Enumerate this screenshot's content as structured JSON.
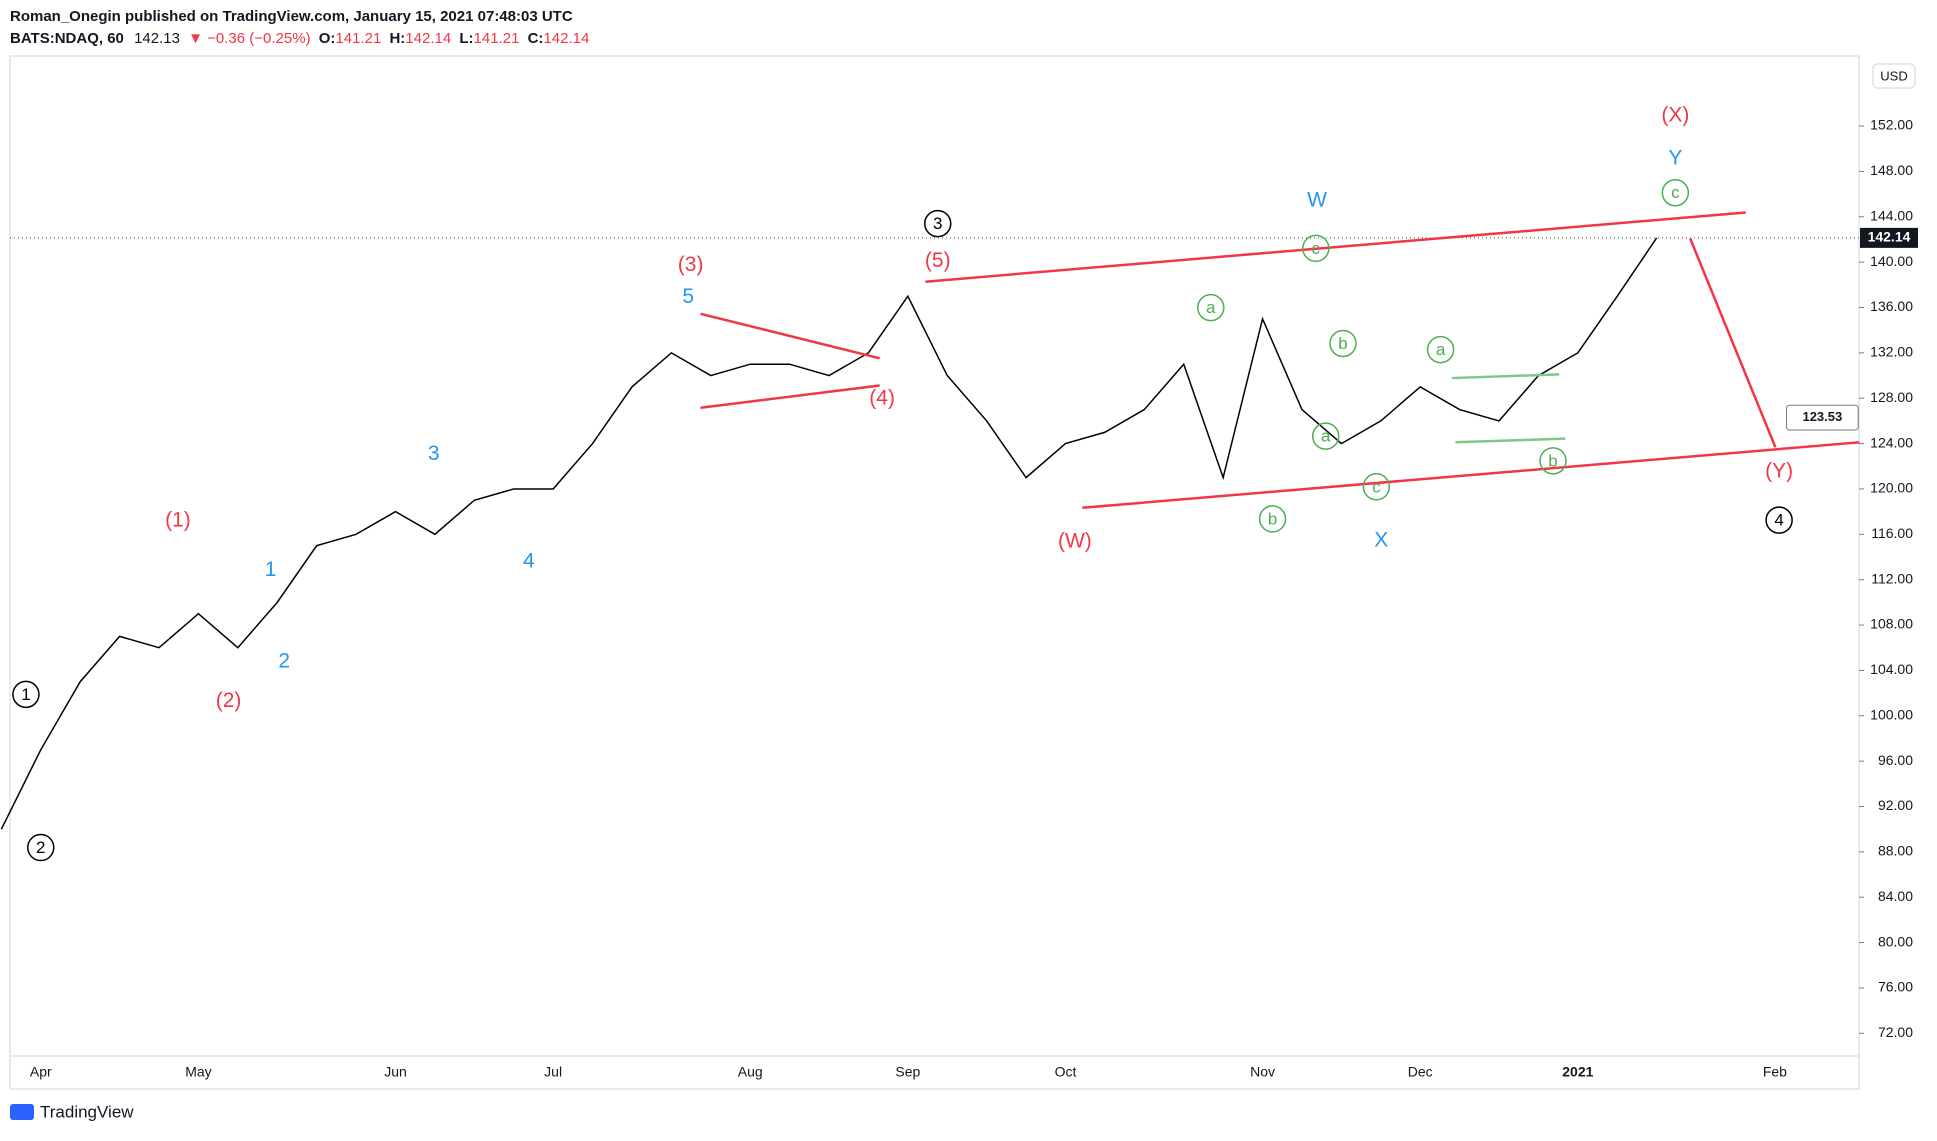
{
  "header": {
    "author_line": "Roman_Onegin published on TradingView.com, January 15, 2021 07:48:03 UTC",
    "symbol": "BATS:NDAQ, 60",
    "last": "142.13",
    "change": "▼ −0.36 (−0.25%)",
    "o_label": "O:",
    "o_value": "141.21",
    "h_label": "H:",
    "h_value": "142.14",
    "l_label": "L:",
    "l_value": "141.21",
    "c_label": "C:",
    "c_value": "142.14"
  },
  "footer": {
    "brand": "TradingView"
  },
  "chart_data": {
    "type": "line",
    "currency": "USD",
    "color": "#000000",
    "categories": [
      null,
      "Apr",
      null,
      null,
      null,
      "May",
      null,
      null,
      null,
      null,
      "Jun",
      null,
      null,
      null,
      "Jul",
      null,
      null,
      null,
      null,
      "Aug",
      null,
      null,
      null,
      "Sep",
      null,
      null,
      null,
      "Oct",
      null,
      null,
      null,
      null,
      "Nov",
      null,
      null,
      null,
      "Dec",
      null,
      null,
      null,
      "2021",
      null,
      null,
      null,
      null,
      "Feb",
      null
    ],
    "values": [
      90,
      97,
      103,
      107,
      106,
      109,
      106,
      110,
      115,
      116,
      118,
      116,
      119,
      120,
      120,
      124,
      129,
      132,
      130,
      131,
      131,
      130,
      132,
      137,
      130,
      126,
      121,
      124,
      125,
      127,
      131,
      121,
      135,
      127,
      124,
      126,
      129,
      127,
      126,
      130,
      132,
      137,
      142.14,
      null,
      null,
      null,
      null
    ],
    "ylim": [
      70,
      158
    ],
    "yticks": [
      {
        "value": 72,
        "label": "72.00"
      },
      {
        "value": 76,
        "label": "76.00"
      },
      {
        "value": 80,
        "label": "80.00"
      },
      {
        "value": 84,
        "label": "84.00"
      },
      {
        "value": 88,
        "label": "88.00"
      },
      {
        "value": 92,
        "label": "92.00"
      },
      {
        "value": 96,
        "label": "96.00"
      },
      {
        "value": 100,
        "label": "100.00"
      },
      {
        "value": 104,
        "label": "104.00"
      },
      {
        "value": 108,
        "label": "108.00"
      },
      {
        "value": 112,
        "label": "112.00"
      },
      {
        "value": 116,
        "label": "116.00"
      },
      {
        "value": 120,
        "label": "120.00"
      },
      {
        "value": 124,
        "label": "124.00"
      },
      {
        "value": 128,
        "label": "128.00"
      },
      {
        "value": 132,
        "label": "132.00"
      },
      {
        "value": 136,
        "label": "136.00"
      },
      {
        "value": 140,
        "label": "140.00"
      },
      {
        "value": 144,
        "label": "144.00"
      },
      {
        "value": 148,
        "label": "148.00"
      },
      {
        "value": 152,
        "label": "152.00"
      }
    ],
    "target_label": "123.53",
    "wave_labels": [
      {
        "text": "1",
        "color": "#000000",
        "circled": true
      },
      {
        "text": "2",
        "color": "#000000",
        "circled": true
      },
      {
        "text": "3",
        "color": "#000000",
        "circled": true
      },
      {
        "text": "4",
        "color": "#000000",
        "circled": true
      },
      {
        "text": "a",
        "color": "#4caf50",
        "circled": true
      },
      {
        "text": "c",
        "color": "#4caf50",
        "circled": true
      },
      {
        "text": "b",
        "color": "#4caf50",
        "circled": true
      },
      {
        "text": "b",
        "color": "#4caf50",
        "circled": true
      },
      {
        "text": "a",
        "color": "#4caf50",
        "circled": true
      },
      {
        "text": "c",
        "color": "#4caf50",
        "circled": true
      },
      {
        "text": "a",
        "color": "#4caf50",
        "circled": true
      },
      {
        "text": "b",
        "color": "#4caf50",
        "circled": true
      },
      {
        "text": "c",
        "color": "#4caf50",
        "circled": true
      },
      {
        "text": "(1)",
        "color": "#f23645",
        "circled": false
      },
      {
        "text": "(2)",
        "color": "#f23645",
        "circled": false
      },
      {
        "text": "(3)",
        "color": "#f23645",
        "circled": false
      },
      {
        "text": "(4)",
        "color": "#f23645",
        "circled": false
      },
      {
        "text": "(5)",
        "color": "#f23645",
        "circled": false
      },
      {
        "text": "(W)",
        "color": "#f23645",
        "circled": false
      },
      {
        "text": "(X)",
        "color": "#f23645",
        "circled": false
      },
      {
        "text": "(Y)",
        "color": "#f23645",
        "circled": false
      },
      {
        "text": "1",
        "color": "#2196f3",
        "circled": false
      },
      {
        "text": "2",
        "color": "#2196f3",
        "circled": false
      },
      {
        "text": "3",
        "color": "#2196f3",
        "circled": false
      },
      {
        "text": "4",
        "color": "#2196f3",
        "circled": false
      },
      {
        "text": "5",
        "color": "#2196f3",
        "circled": false
      },
      {
        "text": "W",
        "color": "#2196f3",
        "circled": false
      },
      {
        "text": "X",
        "color": "#2196f3",
        "circled": false
      },
      {
        "text": "Y",
        "color": "#2196f3",
        "circled": false
      }
    ]
  }
}
